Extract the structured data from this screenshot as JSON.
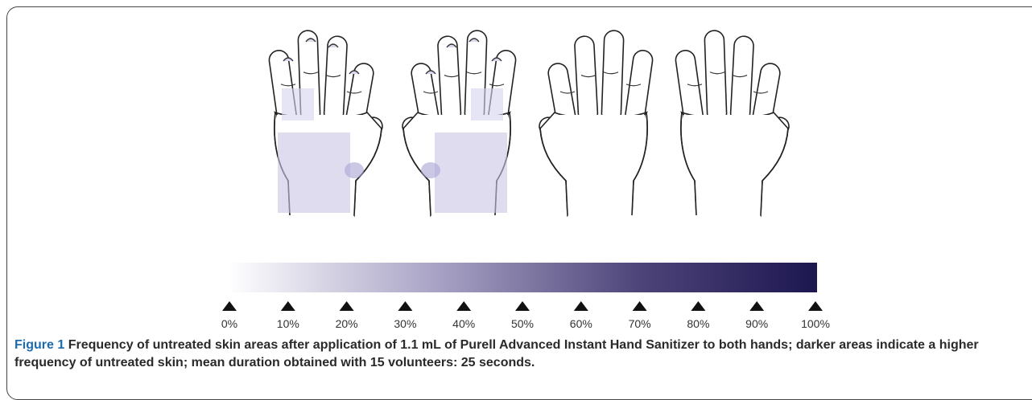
{
  "figure": {
    "label": "Figure 1",
    "caption": "Frequency of untreated skin areas after application of 1.1 mL of Purell Advanced Instant Hand Sanitizer to both hands; darker areas indicate a higher frequency of untreated skin; mean duration obtained with 15 volunteers: 25 seconds.",
    "scale": {
      "ticks": [
        "0%",
        "10%",
        "20%",
        "30%",
        "40%",
        "50%",
        "60%",
        "70%",
        "80%",
        "90%",
        "100%"
      ]
    }
  }
}
